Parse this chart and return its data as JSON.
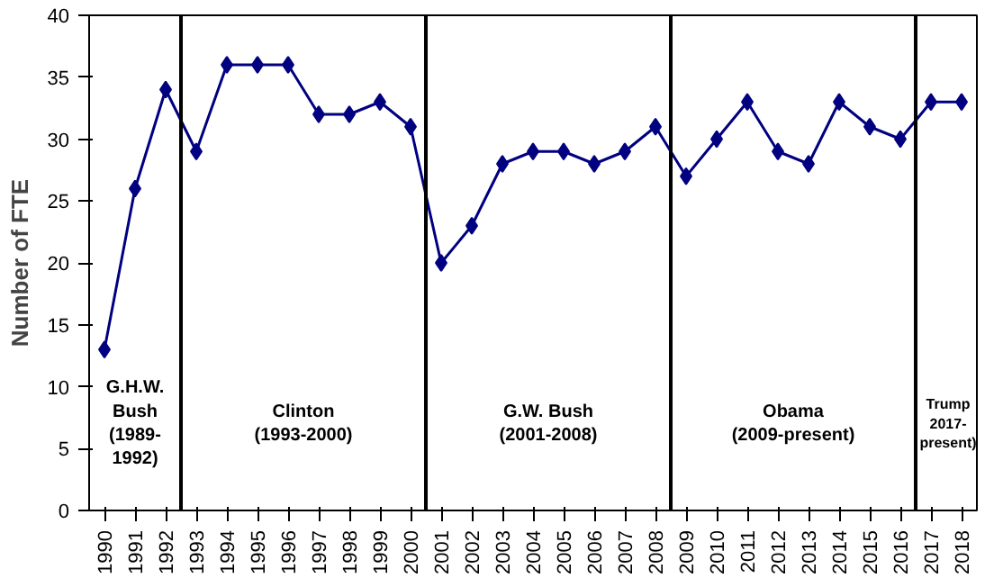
{
  "chart_data": {
    "type": "line",
    "ylabel": "Number of FTE",
    "x": [
      1990,
      1991,
      1992,
      1993,
      1994,
      1995,
      1996,
      1997,
      1998,
      1999,
      2000,
      2001,
      2002,
      2003,
      2004,
      2005,
      2006,
      2007,
      2008,
      2009,
      2010,
      2011,
      2012,
      2013,
      2014,
      2015,
      2016,
      2017,
      2018
    ],
    "series": [
      {
        "color": "#000080",
        "values": [
          13,
          26,
          34,
          29,
          36,
          36,
          36,
          32,
          32,
          33,
          31,
          20,
          23,
          28,
          29,
          29,
          28,
          29,
          31,
          27,
          30,
          33,
          29,
          28,
          33,
          31,
          30,
          33,
          33
        ]
      }
    ],
    "xlim": [
      1989.5,
      2018.5
    ],
    "xticks": [
      1990,
      1991,
      1992,
      1993,
      1994,
      1995,
      1996,
      1997,
      1998,
      1999,
      2000,
      2001,
      2002,
      2003,
      2004,
      2005,
      2006,
      2007,
      2008,
      2009,
      2010,
      2011,
      2012,
      2013,
      2014,
      2015,
      2016,
      2017,
      2018
    ],
    "ylim": [
      0,
      40
    ],
    "yticks": [
      0,
      5,
      10,
      15,
      20,
      25,
      30,
      35,
      40
    ],
    "ref_lines": [
      {
        "axis": "x",
        "value": 1992.5,
        "color": "#000000"
      },
      {
        "axis": "x",
        "value": 2000.5,
        "color": "#000000"
      },
      {
        "axis": "x",
        "value": 2008.5,
        "color": "#000000"
      },
      {
        "axis": "x",
        "value": 2016.5,
        "color": "#000000"
      }
    ],
    "annotations": [
      "G.H.W.\nBush\n(1989-\n1992)",
      "Clinton\n(1993-2000)",
      "G.W. Bush\n(2001-2008)",
      "Obama\n(2009-present)",
      "Trump\n2017-\npresent)"
    ],
    "marker": "diamond",
    "line_style": "solid",
    "grid": false
  }
}
